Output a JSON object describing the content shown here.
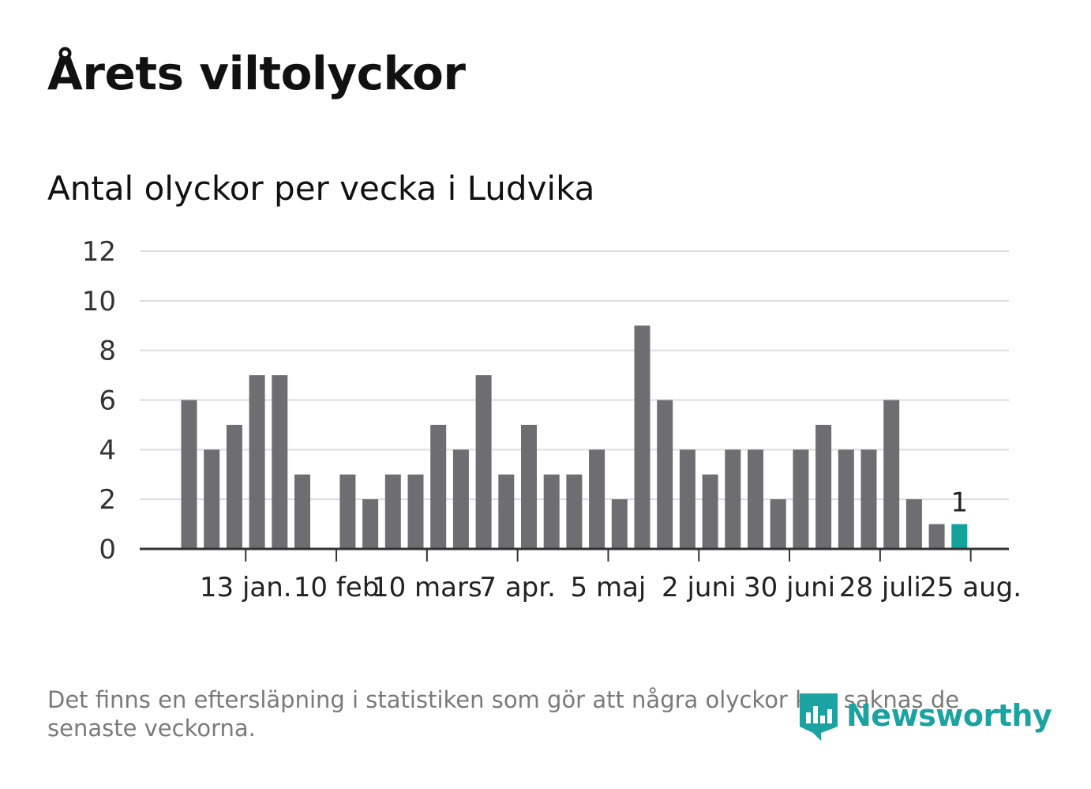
{
  "header": {
    "title": "Årets viltolyckor",
    "subtitle": "Antal olyckor per vecka i Ludvika"
  },
  "footer": {
    "note": "Det finns en eftersläpning i statistiken som gör att några olyckor kan saknas de senaste veckorna.",
    "brand": "Newsworthy"
  },
  "colors": {
    "bar": "#6e6d72",
    "highlight": "#13a39a",
    "grid": "#dddddd",
    "axis": "#333333",
    "brand": "#1aa3a0"
  },
  "chart_data": {
    "type": "bar",
    "ylim": [
      0,
      12
    ],
    "yticks": [
      "0",
      "2",
      "4",
      "6",
      "8",
      "10",
      "12"
    ],
    "xticks": [
      {
        "label": "13 jan.",
        "week": 2
      },
      {
        "label": "10 feb",
        "week": 6
      },
      {
        "label": "10 mars",
        "week": 10
      },
      {
        "label": "7 apr.",
        "week": 14
      },
      {
        "label": "5 maj",
        "week": 18
      },
      {
        "label": "2 juni",
        "week": 22
      },
      {
        "label": "30 juni",
        "week": 26
      },
      {
        "label": "28 juli",
        "week": 30
      },
      {
        "label": "25 aug.",
        "week": 34
      }
    ],
    "values": [
      6,
      4,
      5,
      7,
      7,
      3,
      0,
      3,
      2,
      3,
      3,
      5,
      4,
      7,
      3,
      5,
      3,
      3,
      4,
      2,
      9,
      6,
      4,
      3,
      4,
      4,
      2,
      4,
      5,
      4,
      4,
      6,
      2,
      1,
      1
    ],
    "highlight_last": true,
    "last_label": "1",
    "grid": true
  }
}
